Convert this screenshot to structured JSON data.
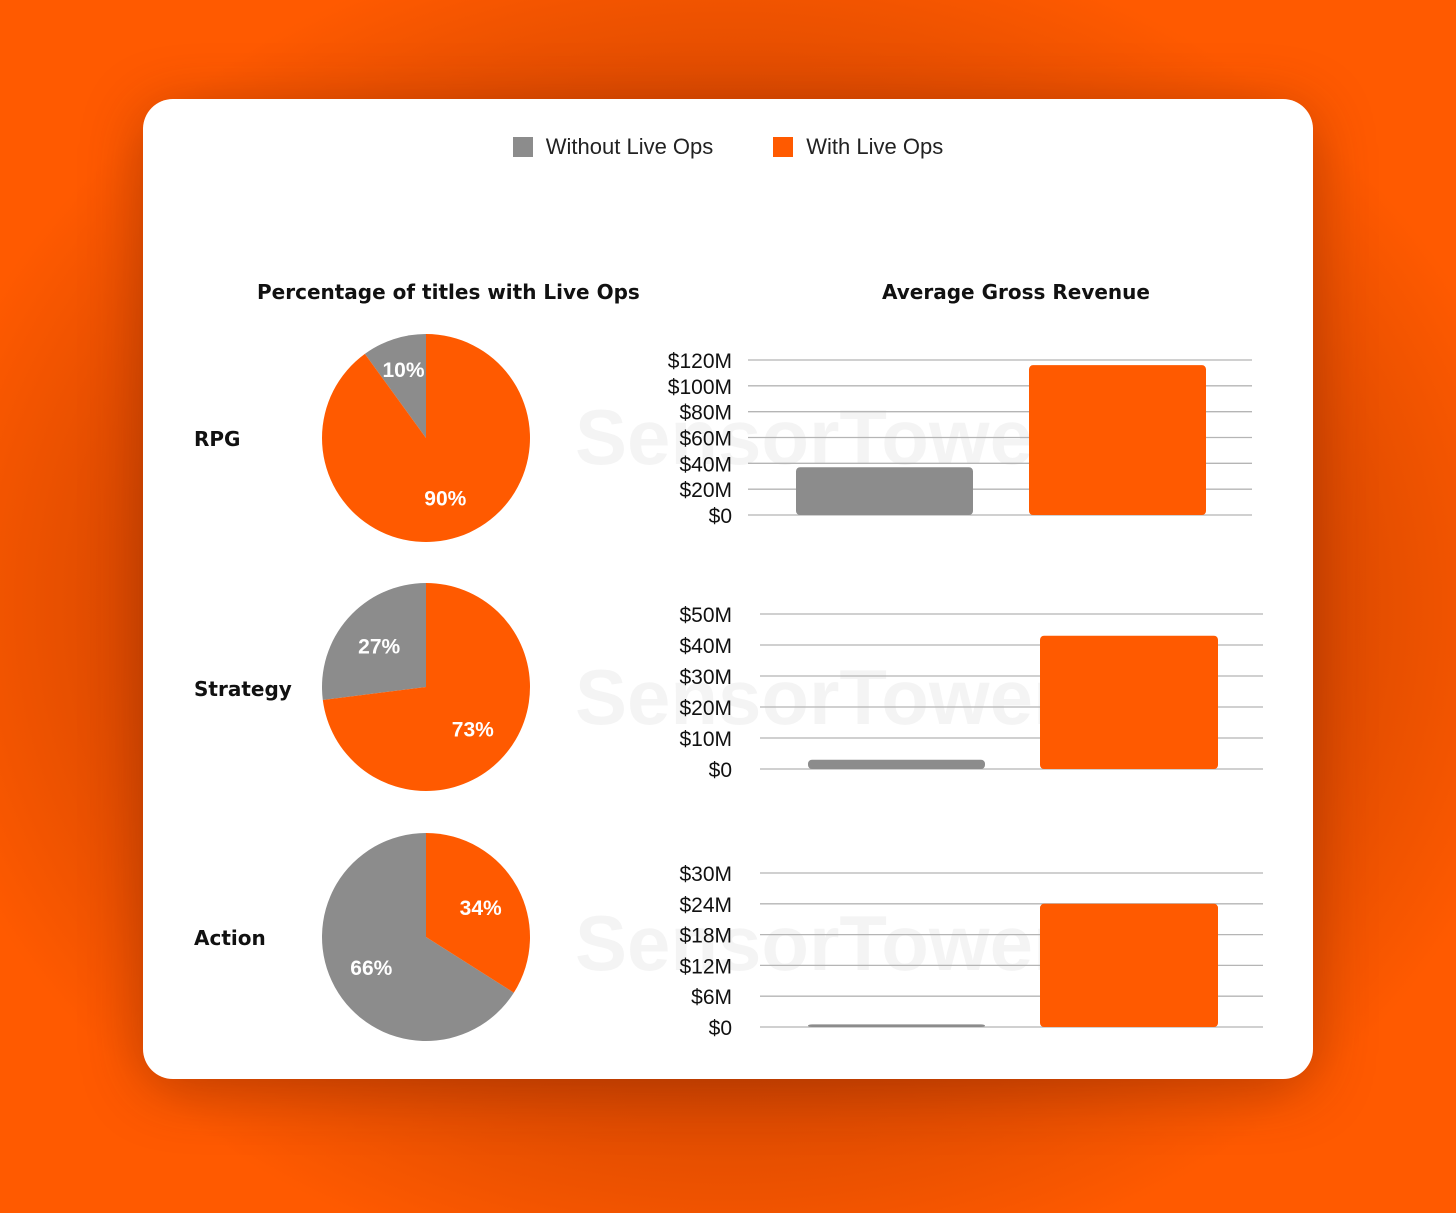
{
  "colors": {
    "without": "#8c8c8c",
    "with": "#ff5a00"
  },
  "legend": {
    "without_label": "Without Live Ops",
    "with_label": "With Live Ops"
  },
  "titles": {
    "pie": "Percentage of titles with Live Ops",
    "bar": "Average Gross Revenue"
  },
  "watermark": "SensorTower",
  "rows": [
    {
      "label": "RPG"
    },
    {
      "label": "Strategy"
    },
    {
      "label": "Action"
    }
  ],
  "chart_data": [
    {
      "type": "pie",
      "title": "Percentage of titles with Live Ops",
      "category": "RPG",
      "slices": [
        {
          "name": "Without Live Ops",
          "value": 10,
          "label": "10%"
        },
        {
          "name": "With Live Ops",
          "value": 90,
          "label": "90%"
        }
      ]
    },
    {
      "type": "pie",
      "title": "Percentage of titles with Live Ops",
      "category": "Strategy",
      "slices": [
        {
          "name": "Without Live Ops",
          "value": 27,
          "label": "27%"
        },
        {
          "name": "With Live Ops",
          "value": 73,
          "label": "73%"
        }
      ]
    },
    {
      "type": "pie",
      "title": "Percentage of titles with Live Ops",
      "category": "Action",
      "slices": [
        {
          "name": "Without Live Ops",
          "value": 66,
          "label": "66%"
        },
        {
          "name": "With Live Ops",
          "value": 34,
          "label": "34%"
        }
      ]
    },
    {
      "type": "bar",
      "title": "Average Gross Revenue",
      "category": "RPG",
      "categories": [
        "Without Live Ops",
        "With Live Ops"
      ],
      "values": [
        37,
        116
      ],
      "ylim": [
        0,
        120
      ],
      "yticks": [
        "$0",
        "$20M",
        "$40M",
        "$60M",
        "$80M",
        "$100M",
        "$120M"
      ],
      "grid": true
    },
    {
      "type": "bar",
      "title": "Average Gross Revenue",
      "category": "Strategy",
      "categories": [
        "Without Live Ops",
        "With Live Ops"
      ],
      "values": [
        3,
        43
      ],
      "ylim": [
        0,
        50
      ],
      "yticks": [
        "$0",
        "$10M",
        "$20M",
        "$30M",
        "$40M",
        "$50M"
      ],
      "grid": true
    },
    {
      "type": "bar",
      "title": "Average Gross Revenue",
      "category": "Action",
      "categories": [
        "Without Live Ops",
        "With Live Ops"
      ],
      "values": [
        0.5,
        24
      ],
      "ylim": [
        0,
        30
      ],
      "yticks": [
        "$0",
        "$6M",
        "$12M",
        "$18M",
        "$24M",
        "$30M"
      ],
      "grid": true
    }
  ]
}
